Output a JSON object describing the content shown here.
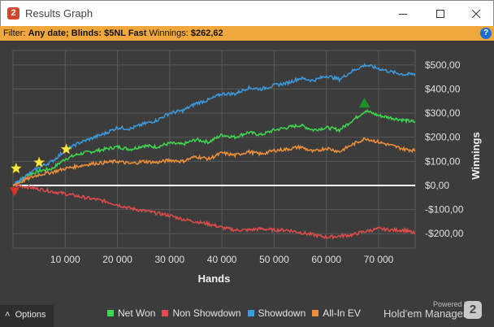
{
  "window": {
    "app_icon_text": "2",
    "title": "Results Graph"
  },
  "filter": {
    "prefix": "Filter: ",
    "date": "Any date;",
    "blinds": "Blinds: $5NL Fast",
    "winnings_label": "Winnings:",
    "winnings_value": "$262,62",
    "help_icon": "?"
  },
  "bottom": {
    "options_label": "Options",
    "options_icon": "caret-up-icon",
    "powered_by": "Powered by",
    "brand": "Hold'em Manager",
    "brand_logo": "2"
  },
  "colors": {
    "net_won": "#3fd94f",
    "non_showdown": "#e24b4b",
    "showdown": "#3b9ae0",
    "all_in_ev": "#f0913a",
    "zero_line": "#ffffff",
    "plot_bg": "#3c3c3c",
    "grid": "#585858"
  },
  "chart_data": {
    "type": "line",
    "title": "",
    "xlabel": "Hands",
    "ylabel": "Winnings",
    "xlim": [
      0,
      77000
    ],
    "ylim": [
      -260,
      560
    ],
    "grid": true,
    "legend_position": "bottom",
    "x_ticks": [
      10000,
      20000,
      30000,
      40000,
      50000,
      60000,
      70000
    ],
    "x_tick_labels": [
      "10 000",
      "20 000",
      "30 000",
      "40 000",
      "50 000",
      "60 000",
      "70 000"
    ],
    "y_ticks": [
      500,
      400,
      300,
      200,
      100,
      0,
      -100,
      -200
    ],
    "y_tick_labels": [
      "$500,00",
      "$400,00",
      "$300,00",
      "$200,00",
      "$100,00",
      "$0,00",
      "-$100,00",
      "-$200,00"
    ],
    "x": [
      0,
      2500,
      5000,
      7500,
      10000,
      12500,
      15000,
      17500,
      20000,
      22500,
      25000,
      27500,
      30000,
      32500,
      35000,
      37500,
      40000,
      42500,
      45000,
      47500,
      50000,
      52500,
      55000,
      57500,
      60000,
      62500,
      65000,
      67500,
      70000,
      72500,
      75000,
      77000
    ],
    "series": [
      {
        "name": "Net Won",
        "key": "net_won",
        "values": [
          0,
          40,
          60,
          70,
          110,
          130,
          140,
          150,
          160,
          150,
          165,
          160,
          175,
          170,
          190,
          180,
          210,
          200,
          220,
          210,
          230,
          240,
          250,
          230,
          240,
          230,
          270,
          310,
          290,
          280,
          270,
          263
        ]
      },
      {
        "name": "Non Showdown",
        "key": "non_showdown",
        "values": [
          0,
          -5,
          -15,
          -25,
          -35,
          -45,
          -55,
          -65,
          -80,
          -95,
          -105,
          -115,
          -125,
          -140,
          -150,
          -160,
          -175,
          -185,
          -185,
          -180,
          -185,
          -185,
          -195,
          -205,
          -215,
          -210,
          -205,
          -190,
          -180,
          -185,
          -185,
          -200
        ]
      },
      {
        "name": "Showdown",
        "key": "showdown",
        "values": [
          0,
          40,
          75,
          100,
          145,
          175,
          195,
          215,
          240,
          235,
          255,
          270,
          300,
          310,
          340,
          355,
          380,
          380,
          405,
          400,
          415,
          425,
          445,
          435,
          455,
          440,
          475,
          500,
          485,
          470,
          460,
          463
        ]
      },
      {
        "name": "All-In EV",
        "key": "all_in_ev",
        "values": [
          0,
          25,
          45,
          55,
          70,
          80,
          90,
          95,
          100,
          90,
          100,
          95,
          105,
          100,
          120,
          110,
          135,
          125,
          140,
          130,
          145,
          150,
          160,
          140,
          155,
          140,
          170,
          195,
          180,
          165,
          150,
          145
        ]
      }
    ],
    "annotations": [
      {
        "type": "star",
        "x": 600,
        "y": 70
      },
      {
        "type": "star",
        "x": 5000,
        "y": 95
      },
      {
        "type": "star",
        "x": 10200,
        "y": 150
      },
      {
        "type": "triangle-up",
        "x": 67300,
        "y": 340
      },
      {
        "type": "triangle-down",
        "x": 300,
        "y": -28
      }
    ]
  }
}
